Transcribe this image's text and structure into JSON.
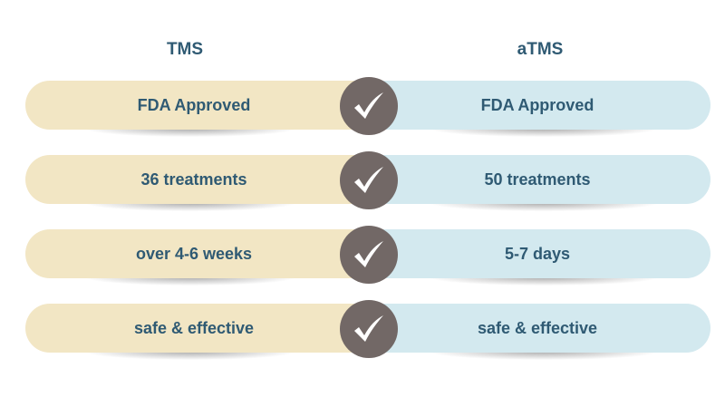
{
  "columns": {
    "left_title": "TMS",
    "right_title": "aTMS"
  },
  "rows": [
    {
      "left": "FDA Approved",
      "right": "FDA Approved"
    },
    {
      "left": "36 treatments",
      "right": "50 treatments"
    },
    {
      "left": "over 4-6 weeks",
      "right": "5-7 days"
    },
    {
      "left": "safe & effective",
      "right": "safe & effective"
    }
  ],
  "colors": {
    "left_pill": "#f2e6c4",
    "right_pill": "#d3e9ef",
    "check_circle": "#726866",
    "text": "#2f5a73"
  },
  "icons": {
    "divider": "checkmark-icon"
  }
}
